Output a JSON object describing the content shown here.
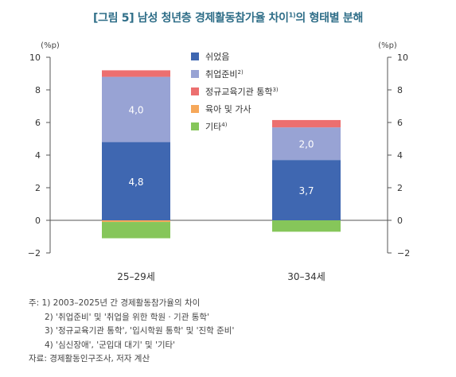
{
  "title": {
    "main": "[그림 5] 남성 청년층 경제활동참가율 차이",
    "sup": "1)",
    "suffix": "의 형태별 분해"
  },
  "chart_data": {
    "type": "bar",
    "stacked": true,
    "categories": [
      "25–29세",
      "30–34세"
    ],
    "ylabel_left": "(%p)",
    "ylabel_right": "(%p)",
    "ylim": [
      -2,
      10
    ],
    "yticks": [
      -2,
      0,
      2,
      4,
      6,
      8,
      10
    ],
    "grid": false,
    "legend_position": "top-right",
    "series": [
      {
        "name": "쉬었음",
        "sup": "",
        "color": "#3f67b1",
        "values": [
          4.8,
          3.7
        ],
        "labels": [
          "4,8",
          "3,7"
        ]
      },
      {
        "name": "취업준비",
        "sup": "2)",
        "color": "#98a3d4",
        "values": [
          4.0,
          2.0
        ],
        "labels": [
          "4,0",
          "2,0"
        ]
      },
      {
        "name": "정규교육기관 통학",
        "sup": "3)",
        "color": "#ec6f6f",
        "values": [
          0.4,
          0.45
        ],
        "labels": [
          "",
          ""
        ]
      },
      {
        "name": "육아 및 가사",
        "sup": "",
        "color": "#f6a85a",
        "values": [
          -0.1,
          0.0
        ],
        "labels": [
          "",
          ""
        ]
      },
      {
        "name": "기타",
        "sup": "4)",
        "color": "#86c65a",
        "values": [
          -1.0,
          -0.7
        ],
        "labels": [
          "",
          ""
        ]
      }
    ]
  },
  "notes": [
    "주: 1) 2003–2025년 간 경제활동참가율의 차이",
    "2) '취업준비' 및 '취업을 위한 학원 · 기관 통학'",
    "3) '정규교육기관 통학', '입시학원 통학' 및 '진학 준비'",
    "4) '심신장애', '군입대 대기' 및 '기타'"
  ],
  "source": "자료: 경제활동인구조사, 저자 계산"
}
